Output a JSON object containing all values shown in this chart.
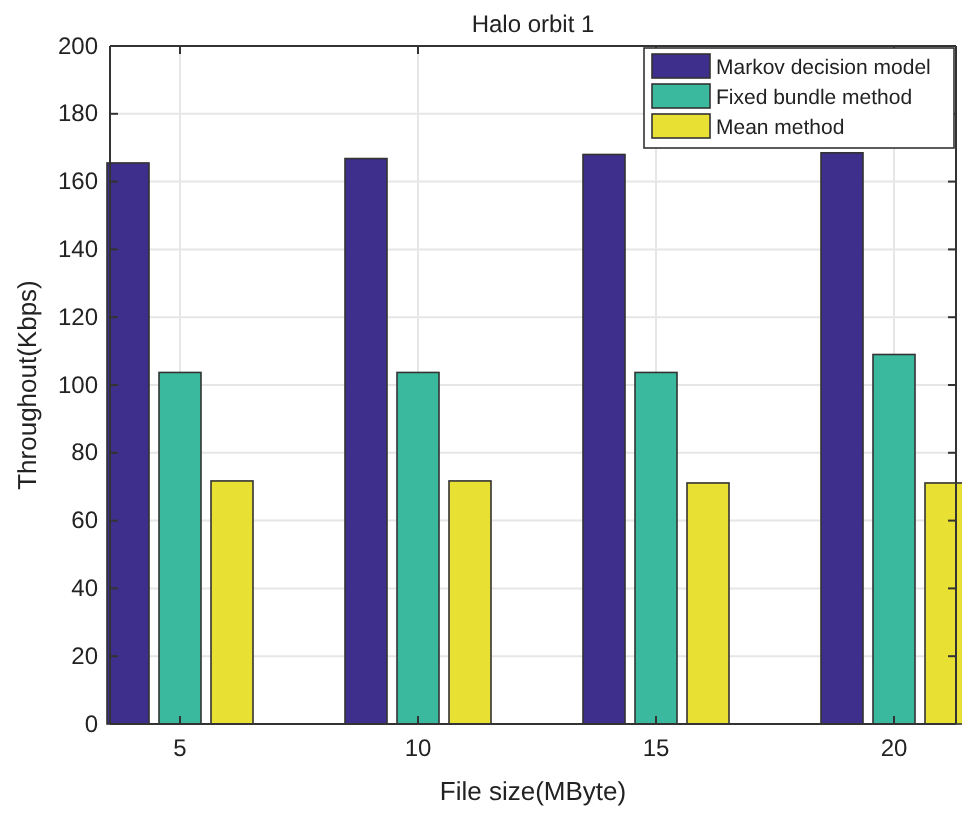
{
  "chart_data": {
    "type": "bar",
    "title": "Halo orbit 1",
    "xlabel": "File size(MByte)",
    "ylabel": "Throughout(Kbps)",
    "categories": [
      "5",
      "10",
      "15",
      "20"
    ],
    "series": [
      {
        "name": "Markov decision model",
        "color": "#3e2f8c",
        "values": [
          165.5,
          166.8,
          168,
          168.5
        ]
      },
      {
        "name": "Fixed bundle method",
        "color": "#3bb99e",
        "values": [
          103.7,
          103.7,
          103.7,
          109
        ]
      },
      {
        "name": "Mean method",
        "color": "#e8e032",
        "values": [
          71.7,
          71.7,
          71.1,
          71.1
        ]
      }
    ],
    "ylim": [
      0,
      200
    ],
    "yticks": [
      0,
      20,
      40,
      60,
      80,
      100,
      120,
      140,
      160,
      180,
      200
    ],
    "grid": true,
    "legend": "top right"
  }
}
